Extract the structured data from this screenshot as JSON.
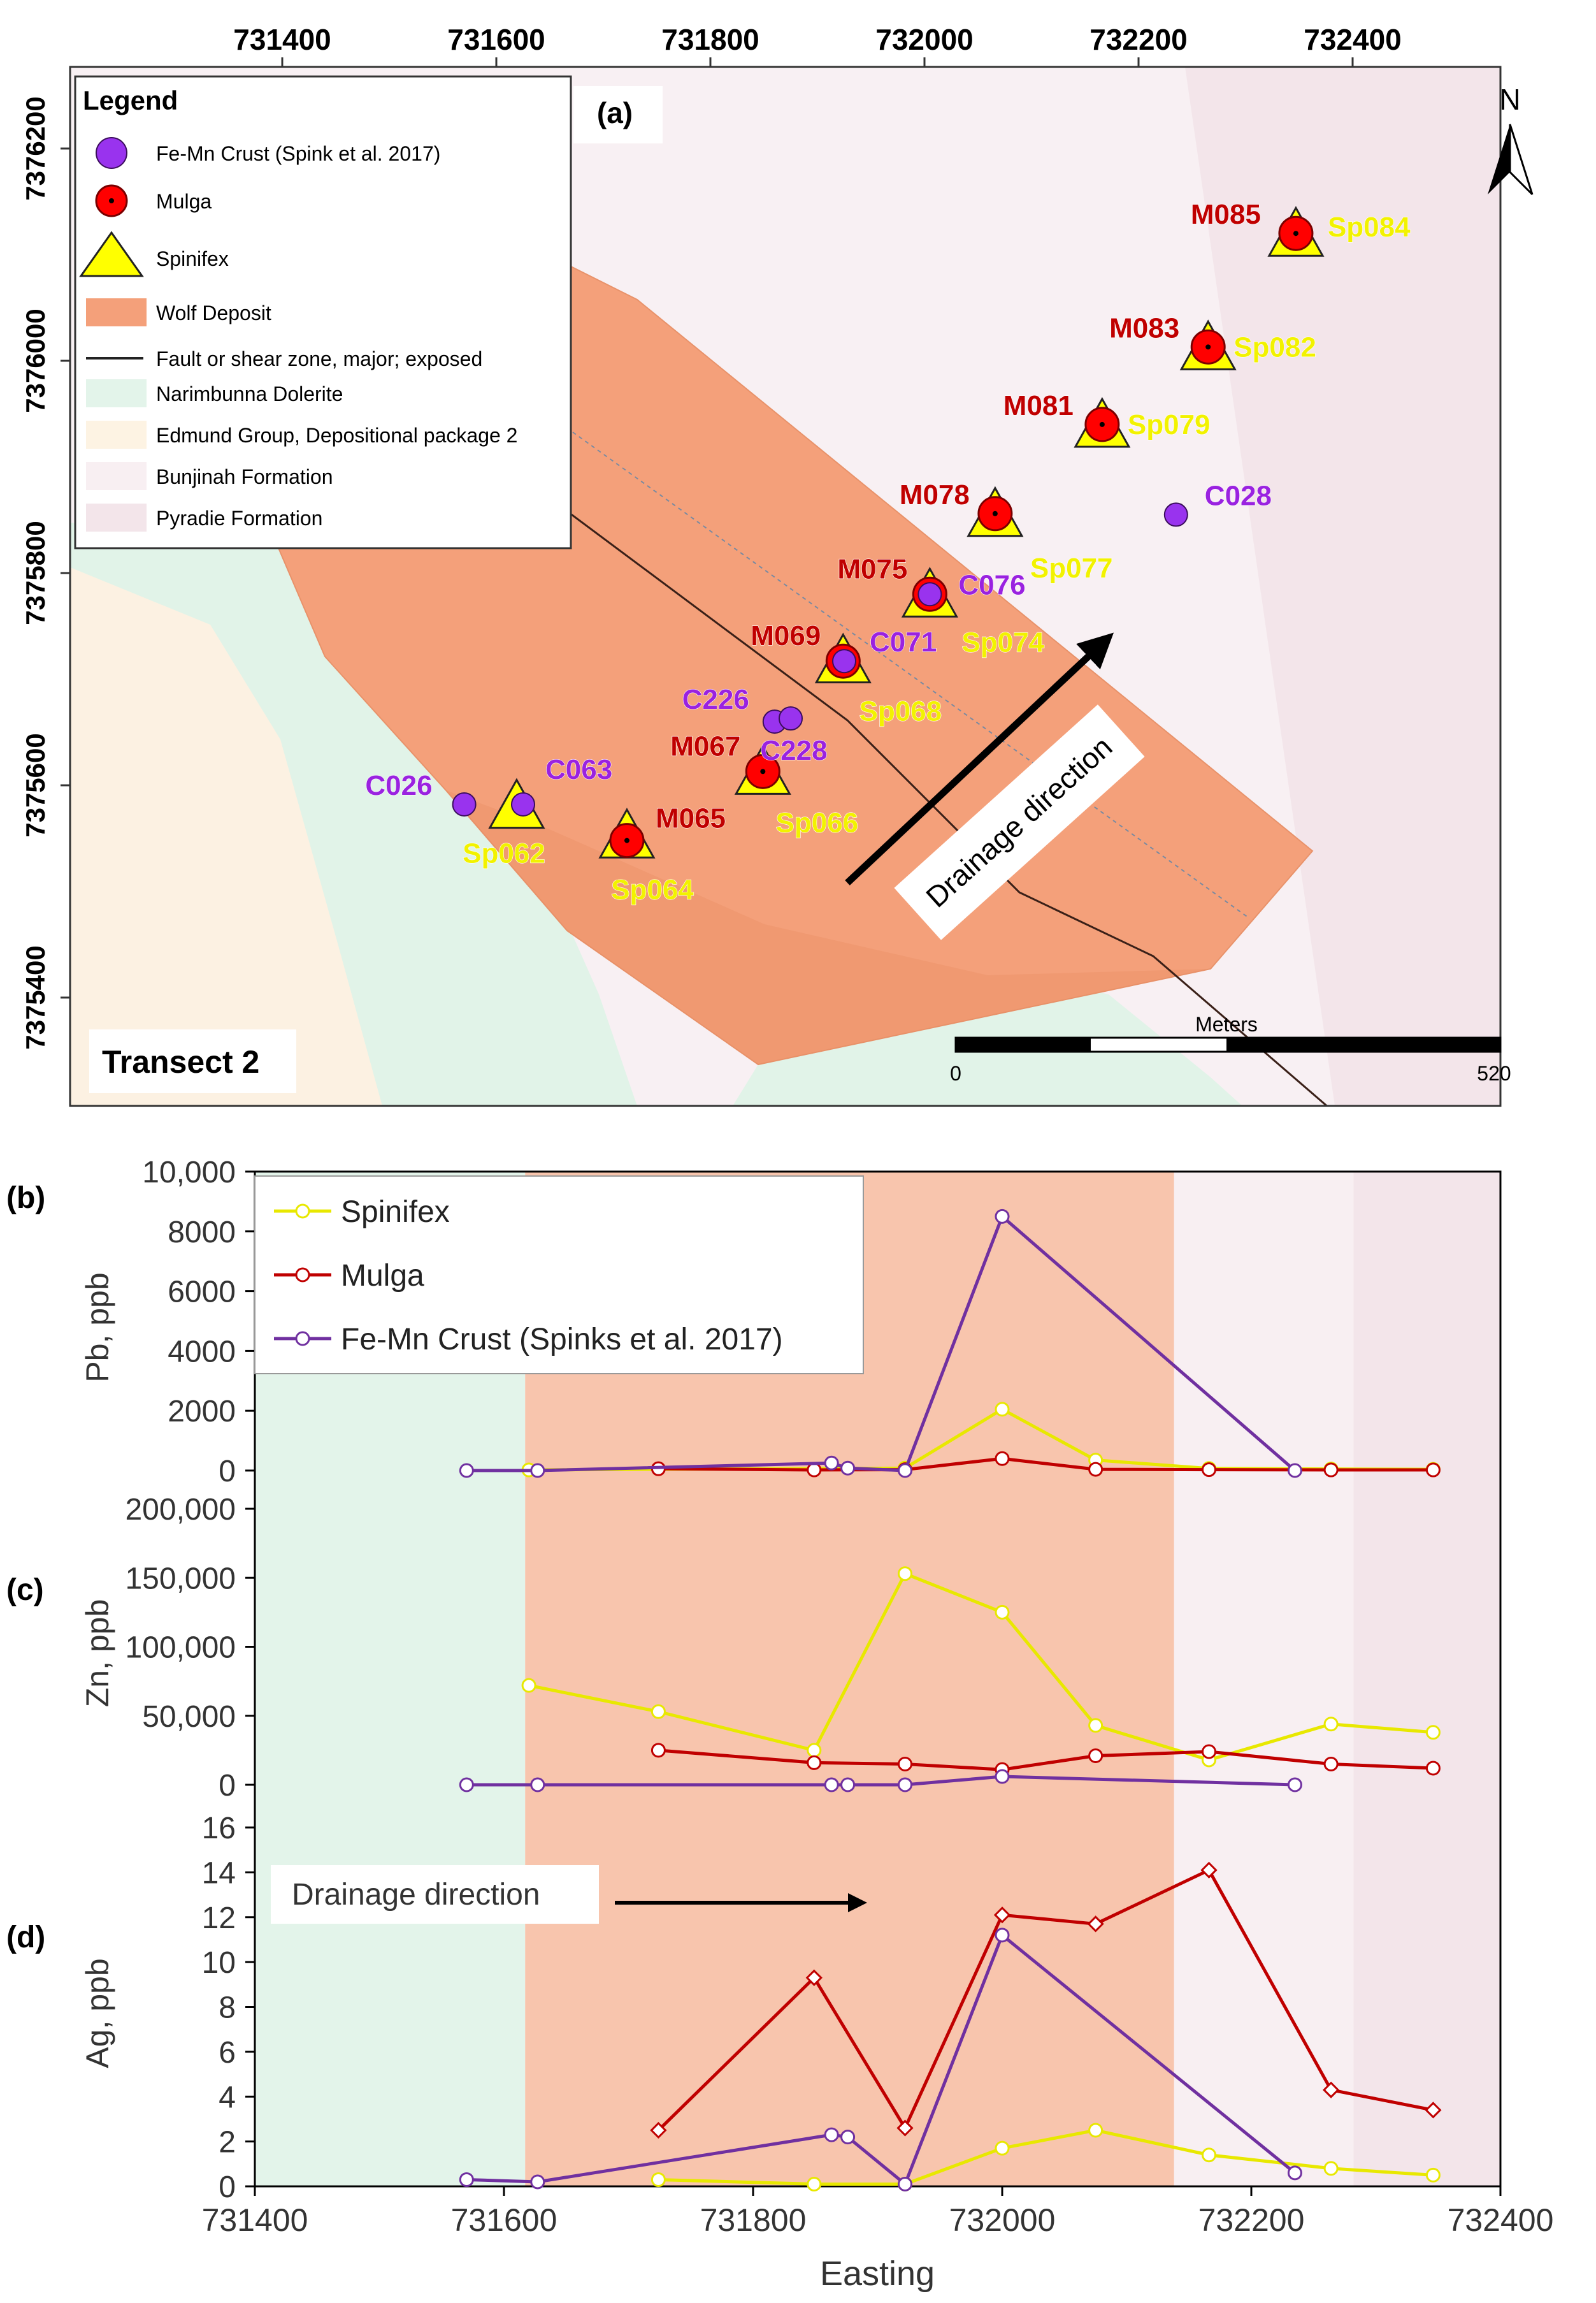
{
  "colors": {
    "spinifex": "#ffff00",
    "mulga": "#c00000",
    "mulga_label": "#c00000",
    "fe_mn": "#7030a0",
    "fe_mn_marker": "#9933ee",
    "wolf": "#f4a07a",
    "narimbunna": "#e3f4ea",
    "edmund": "#fdf3e3",
    "bunjinah": "#f8eff2",
    "pyradie": "#f3e5ea"
  },
  "map": {
    "panel_label": "(a)",
    "transect_label": "Transect 2",
    "north_label": "N",
    "drainage_label": "Drainage direction",
    "easting_ticks": [
      "731400",
      "731600",
      "731800",
      "732000",
      "732200",
      "732400"
    ],
    "northing_ticks": [
      "7376200",
      "7376000",
      "7375800",
      "7375600",
      "7375400"
    ],
    "scale_bar": {
      "title": "Meters",
      "start": "0",
      "end": "520"
    },
    "legend": {
      "title": "Legend",
      "items": [
        {
          "label": "Fe-Mn Crust (Spink et al. 2017)",
          "icon": "purple-circle"
        },
        {
          "label": "Mulga",
          "icon": "red-circle-dot"
        },
        {
          "label": "Spinifex",
          "icon": "yellow-triangle"
        },
        {
          "label": "Wolf Deposit",
          "icon": "orange-patch"
        },
        {
          "label": "Fault or shear zone, major; exposed",
          "icon": "black-line"
        },
        {
          "label": "Narimbunna Dolerite",
          "icon": "green-patch"
        },
        {
          "label": "Edmund Group, Depositional package 2",
          "icon": "beige-patch"
        },
        {
          "label": "Bunjinah Formation",
          "icon": "pink-patch"
        },
        {
          "label": "Pyradie Formation",
          "icon": "mauve-patch"
        }
      ]
    },
    "fe_mn_sites": [
      {
        "label": "C026",
        "easting": 731570,
        "northing": 7375582
      },
      {
        "label": "C063",
        "easting": 731625,
        "northing": 7375582
      },
      {
        "label": "C226",
        "easting": 731860,
        "northing": 7375660
      },
      {
        "label": "C228",
        "easting": 731875,
        "northing": 7375663
      },
      {
        "label": "C071",
        "easting": 731925,
        "northing": 7375717
      },
      {
        "label": "C076",
        "easting": 732005,
        "northing": 7375780
      },
      {
        "label": "C028",
        "easting": 732235,
        "northing": 7375855
      }
    ],
    "mulga_sites": [
      {
        "label": "M065",
        "easting": 731722,
        "northing": 7375548
      },
      {
        "label": "M067",
        "easting": 731849,
        "northing": 7375613
      },
      {
        "label": "M069",
        "easting": 731924,
        "northing": 7375717
      },
      {
        "label": "M075",
        "easting": 732005,
        "northing": 7375780
      },
      {
        "label": "M078",
        "easting": 732066,
        "northing": 7375856
      },
      {
        "label": "M081",
        "easting": 732166,
        "northing": 7375940
      },
      {
        "label": "M083",
        "easting": 732265,
        "northing": 7376013
      },
      {
        "label": "M085",
        "easting": 732347,
        "northing": 7376120
      }
    ],
    "spinifex_sites": [
      {
        "label": "Sp062",
        "easting": 731619,
        "northing": 7375578
      },
      {
        "label": "Sp064",
        "easting": 731722,
        "northing": 7375550
      },
      {
        "label": "Sp066",
        "easting": 731849,
        "northing": 7375610
      },
      {
        "label": "Sp068",
        "easting": 731924,
        "northing": 7375715
      },
      {
        "label": "Sp074",
        "easting": 732005,
        "northing": 7375777
      },
      {
        "label": "Sp077",
        "easting": 732066,
        "northing": 7375853
      },
      {
        "label": "Sp079",
        "easting": 732166,
        "northing": 7375937
      },
      {
        "label": "Sp082",
        "easting": 732265,
        "northing": 7376010
      },
      {
        "label": "Sp084",
        "easting": 732347,
        "northing": 7376117
      }
    ]
  },
  "chart_data": [
    {
      "type": "line",
      "panel": "(b)",
      "ylabel": "Pb, ppb",
      "ylim": [
        0,
        10000
      ],
      "yticks": [
        "0",
        "2000",
        "4000",
        "6000",
        "8000",
        "10,000"
      ],
      "xlim": [
        731400,
        732400
      ],
      "series": [
        {
          "name": "Spinifex",
          "x": [
            731620,
            731922,
            732000,
            732075,
            732166,
            732264,
            732346
          ],
          "y": [
            20,
            80,
            2050,
            350,
            70,
            50,
            40
          ]
        },
        {
          "name": "Mulga",
          "x": [
            731724,
            731849,
            731922,
            732000,
            732075,
            732166,
            732264,
            732346
          ],
          "y": [
            60,
            20,
            30,
            400,
            40,
            30,
            20,
            20
          ]
        },
        {
          "name": "Fe-Mn Crust (Spinks et al. 2017)",
          "x": [
            731570,
            731627,
            731863,
            731876,
            731922,
            732000,
            732235
          ],
          "y": [
            0,
            0,
            250,
            80,
            0,
            8500,
            0
          ]
        }
      ]
    },
    {
      "type": "line",
      "panel": "(c)",
      "ylabel": "Zn, ppb",
      "ylim": [
        0,
        200000
      ],
      "yticks": [
        "0",
        "50,000",
        "100,000",
        "150,000",
        "200,000"
      ],
      "xlim": [
        731400,
        732400
      ],
      "series": [
        {
          "name": "Spinifex",
          "x": [
            731620,
            731724,
            731849,
            731922,
            732000,
            732075,
            732166,
            732264,
            732346
          ],
          "y": [
            72000,
            53000,
            25000,
            153000,
            125000,
            43000,
            18000,
            44000,
            38000
          ]
        },
        {
          "name": "Mulga",
          "x": [
            731724,
            731849,
            731922,
            732000,
            732075,
            732166,
            732264,
            732346
          ],
          "y": [
            25000,
            16000,
            15000,
            11000,
            21000,
            24000,
            15000,
            12000
          ]
        },
        {
          "name": "Fe-Mn Crust (Spinks et al. 2017)",
          "x": [
            731570,
            731627,
            731863,
            731876,
            731922,
            732000,
            732235
          ],
          "y": [
            0,
            0,
            0,
            0,
            0,
            6000,
            0
          ]
        }
      ]
    },
    {
      "type": "line",
      "panel": "(d)",
      "ylabel": "Ag, ppb",
      "xlabel": "Easting",
      "ylim": [
        0,
        16
      ],
      "yticks": [
        "0",
        "2",
        "4",
        "6",
        "8",
        "10",
        "12",
        "14",
        "16"
      ],
      "xlim": [
        731400,
        732400
      ],
      "xticks": [
        "731400",
        "731600",
        "731800",
        "732000",
        "732200",
        "732400"
      ],
      "annotation": "Drainage direction",
      "series": [
        {
          "name": "Spinifex",
          "x": [
            731724,
            731849,
            731922,
            732000,
            732075,
            732166,
            732264,
            732346
          ],
          "y": [
            0.3,
            0.1,
            0.1,
            1.7,
            2.5,
            1.4,
            0.8,
            0.5
          ]
        },
        {
          "name": "Mulga",
          "x": [
            731724,
            731849,
            731922,
            732000,
            732075,
            732166,
            732264,
            732346
          ],
          "y": [
            2.5,
            9.3,
            2.6,
            12.1,
            11.7,
            14.1,
            4.3,
            3.4
          ]
        },
        {
          "name": "Fe-Mn Crust (Spinks et al. 2017)",
          "x": [
            731570,
            731627,
            731863,
            731876,
            731922,
            732000,
            732235
          ],
          "y": [
            0.3,
            0.2,
            2.3,
            2.2,
            0.1,
            11.2,
            0.6
          ]
        }
      ]
    }
  ],
  "chart_background_zones": [
    {
      "unit": "Narimbunna Dolerite",
      "from": 731400,
      "to": 731617
    },
    {
      "unit": "Wolf Deposit",
      "from": 731617,
      "to": 732138
    },
    {
      "unit": "Bunjinah Formation",
      "from": 732138,
      "to": 732282
    },
    {
      "unit": "Pyradie Formation",
      "from": 732282,
      "to": 732400
    }
  ]
}
